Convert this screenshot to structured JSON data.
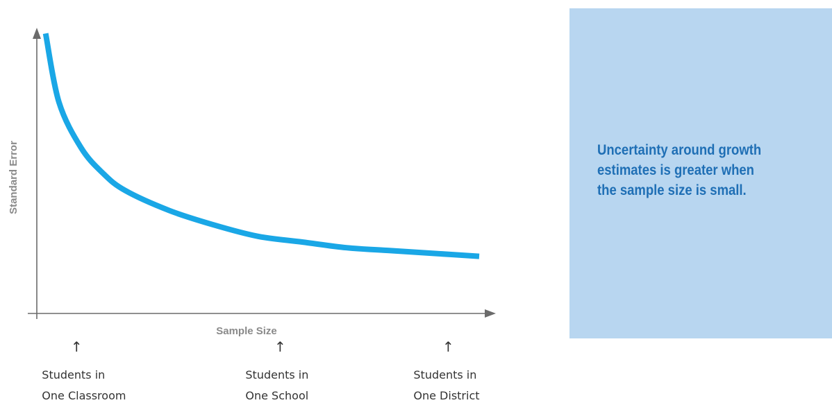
{
  "chart_data": {
    "type": "line",
    "title": "",
    "xlabel": "Sample Size",
    "ylabel": "Standard Error",
    "grid": false,
    "legend": "none",
    "x_ticks_shown": false,
    "y_ticks_shown": false,
    "series": [
      {
        "color": "#1aa7e6",
        "x": [
          0.02,
          0.05,
          0.1,
          0.15,
          0.2,
          0.3,
          0.4,
          0.5,
          0.6,
          0.7,
          0.8,
          0.9,
          1.0
        ],
        "values": [
          0.98,
          0.74,
          0.58,
          0.49,
          0.43,
          0.36,
          0.31,
          0.27,
          0.25,
          0.23,
          0.22,
          0.21,
          0.2
        ]
      }
    ],
    "markers": [
      {
        "arrow": "↑",
        "line1": "Students in",
        "line2": "One Classroom",
        "x": 0.09
      },
      {
        "arrow": "↑",
        "line1": "Students in",
        "line2": "One School",
        "x": 0.55
      },
      {
        "arrow": "↑",
        "line1": "Students in",
        "line2": "One District",
        "x": 0.93
      }
    ]
  },
  "note": {
    "text": "Uncertainty around growth\nestimates is greater when\nthe sample size is small.",
    "background": "#b8d6f0",
    "text_color": "#1f6fb5"
  }
}
